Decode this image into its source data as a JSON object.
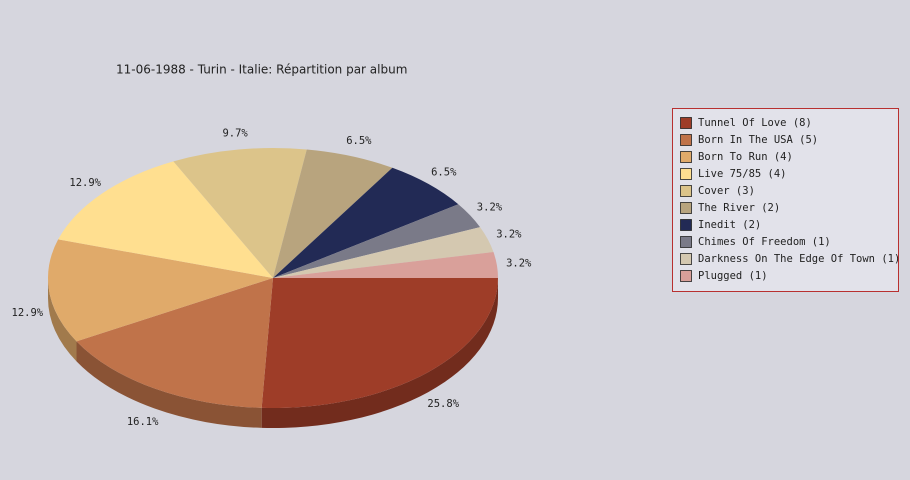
{
  "chart_data": {
    "type": "pie3d",
    "title": "11-06-1988 - Turin - Italie:  Répartition par album",
    "categories": [
      "Tunnel Of Love (8)",
      "Born In The USA (5)",
      "Born To Run (4)",
      "Live 75/85 (4)",
      "Cover (3)",
      "The River (2)",
      "Inedit (2)",
      "Chimes Of Freedom (1)",
      "Darkness On The Edge Of Town (1)",
      "Plugged (1)"
    ],
    "values": [
      25.8,
      16.1,
      12.9,
      12.9,
      9.7,
      6.5,
      6.5,
      3.2,
      3.2,
      3.2
    ],
    "value_labels": [
      "25.8%",
      "16.1%",
      "12.9%",
      "12.9%",
      "9.7%",
      "6.5%",
      "6.5%",
      "3.2%",
      "3.2%",
      "3.2%"
    ],
    "colors": [
      "#9e3d28",
      "#c0734a",
      "#e0aa6a",
      "#ffdf90",
      "#dcc48a",
      "#b8a47e",
      "#222a55",
      "#7a7a88",
      "#d4c8b0",
      "#d9a09a"
    ]
  }
}
